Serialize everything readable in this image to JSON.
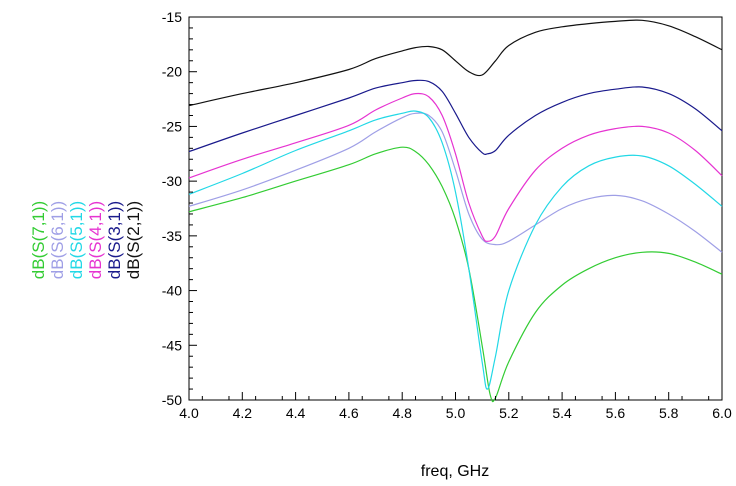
{
  "chart_data": {
    "type": "line",
    "title": "",
    "xlabel": "freq, GHz",
    "ylabel": "",
    "xlim": [
      4.0,
      6.0
    ],
    "ylim": [
      -50,
      -15
    ],
    "xticks": [
      "4.0",
      "4.2",
      "4.4",
      "4.6",
      "4.8",
      "5.0",
      "5.2",
      "5.4",
      "5.6",
      "5.8",
      "6.0"
    ],
    "yticks": [
      "-15",
      "-20",
      "-25",
      "-30",
      "-35",
      "-40",
      "-45",
      "-50"
    ],
    "grid": false,
    "legend_placement": "left, vertical",
    "series": [
      {
        "name": "dB(S(7,1))",
        "color": "#33cc33",
        "x": [
          4.0,
          4.2,
          4.4,
          4.6,
          4.7,
          4.8,
          4.85,
          4.9,
          4.95,
          5.0,
          5.05,
          5.1,
          5.13,
          5.15,
          5.2,
          5.3,
          5.4,
          5.5,
          5.6,
          5.7,
          5.8,
          5.9,
          6.0
        ],
        "y": [
          -32.8,
          -31.5,
          -30.0,
          -28.5,
          -27.5,
          -26.9,
          -27.3,
          -28.5,
          -30.5,
          -33.5,
          -38.0,
          -45.0,
          -49.5,
          -49.8,
          -46.5,
          -42.0,
          -39.5,
          -38.0,
          -37.0,
          -36.5,
          -36.6,
          -37.4,
          -38.5
        ]
      },
      {
        "name": "dB(S(6,1))",
        "color": "#9f9fe6",
        "x": [
          4.0,
          4.2,
          4.4,
          4.6,
          4.7,
          4.8,
          4.85,
          4.9,
          4.95,
          5.0,
          5.05,
          5.1,
          5.15,
          5.2,
          5.3,
          5.4,
          5.5,
          5.6,
          5.7,
          5.8,
          5.9,
          6.0
        ],
        "y": [
          -32.3,
          -30.8,
          -29.0,
          -27.0,
          -25.5,
          -24.2,
          -23.8,
          -24.0,
          -25.5,
          -29.0,
          -33.0,
          -35.3,
          -35.8,
          -35.5,
          -34.0,
          -32.5,
          -31.6,
          -31.3,
          -31.8,
          -33.0,
          -34.6,
          -36.5
        ]
      },
      {
        "name": "dB(S(5,1))",
        "color": "#22d8e6",
        "x": [
          4.0,
          4.2,
          4.4,
          4.6,
          4.7,
          4.8,
          4.85,
          4.9,
          4.95,
          5.0,
          5.05,
          5.1,
          5.12,
          5.15,
          5.2,
          5.3,
          5.4,
          5.5,
          5.6,
          5.7,
          5.8,
          5.9,
          6.0
        ],
        "y": [
          -31.2,
          -29.3,
          -27.2,
          -25.4,
          -24.4,
          -23.8,
          -23.6,
          -24.2,
          -26.5,
          -31.0,
          -38.0,
          -46.5,
          -49.0,
          -46.0,
          -40.0,
          -34.0,
          -30.5,
          -28.6,
          -27.8,
          -27.7,
          -28.6,
          -30.3,
          -32.3
        ]
      },
      {
        "name": "dB(S(4,1))",
        "color": "#e633d1",
        "x": [
          4.0,
          4.2,
          4.4,
          4.6,
          4.7,
          4.8,
          4.85,
          4.9,
          4.95,
          5.0,
          5.05,
          5.1,
          5.12,
          5.15,
          5.2,
          5.3,
          5.4,
          5.5,
          5.6,
          5.7,
          5.8,
          5.9,
          6.0
        ],
        "y": [
          -29.7,
          -28.0,
          -26.5,
          -24.9,
          -23.5,
          -22.4,
          -22.0,
          -22.3,
          -24.0,
          -27.5,
          -32.0,
          -35.0,
          -35.5,
          -35.0,
          -32.5,
          -29.0,
          -27.0,
          -25.8,
          -25.2,
          -25.0,
          -25.6,
          -27.2,
          -29.5
        ]
      },
      {
        "name": "dB(S(3,1))",
        "color": "#1a1a8c",
        "x": [
          4.0,
          4.2,
          4.4,
          4.6,
          4.7,
          4.8,
          4.85,
          4.9,
          4.95,
          5.0,
          5.05,
          5.1,
          5.12,
          5.15,
          5.2,
          5.3,
          5.4,
          5.5,
          5.6,
          5.7,
          5.8,
          5.9,
          6.0
        ],
        "y": [
          -27.3,
          -25.6,
          -24.0,
          -22.4,
          -21.5,
          -21.0,
          -20.8,
          -20.9,
          -21.8,
          -23.8,
          -26.0,
          -27.4,
          -27.5,
          -27.2,
          -25.8,
          -24.0,
          -22.8,
          -22.0,
          -21.6,
          -21.4,
          -22.0,
          -23.4,
          -25.4
        ]
      },
      {
        "name": "dB(S(2,1))",
        "color": "#111111",
        "x": [
          4.0,
          4.2,
          4.4,
          4.6,
          4.7,
          4.8,
          4.85,
          4.9,
          4.95,
          5.0,
          5.05,
          5.1,
          5.15,
          5.2,
          5.3,
          5.4,
          5.5,
          5.6,
          5.7,
          5.8,
          5.9,
          6.0
        ],
        "y": [
          -23.1,
          -22.0,
          -21.0,
          -19.8,
          -18.8,
          -18.1,
          -17.8,
          -17.7,
          -18.0,
          -19.0,
          -20.0,
          -20.3,
          -19.0,
          -17.6,
          -16.4,
          -15.9,
          -15.6,
          -15.4,
          -15.3,
          -15.8,
          -16.8,
          -18.0
        ]
      }
    ]
  }
}
